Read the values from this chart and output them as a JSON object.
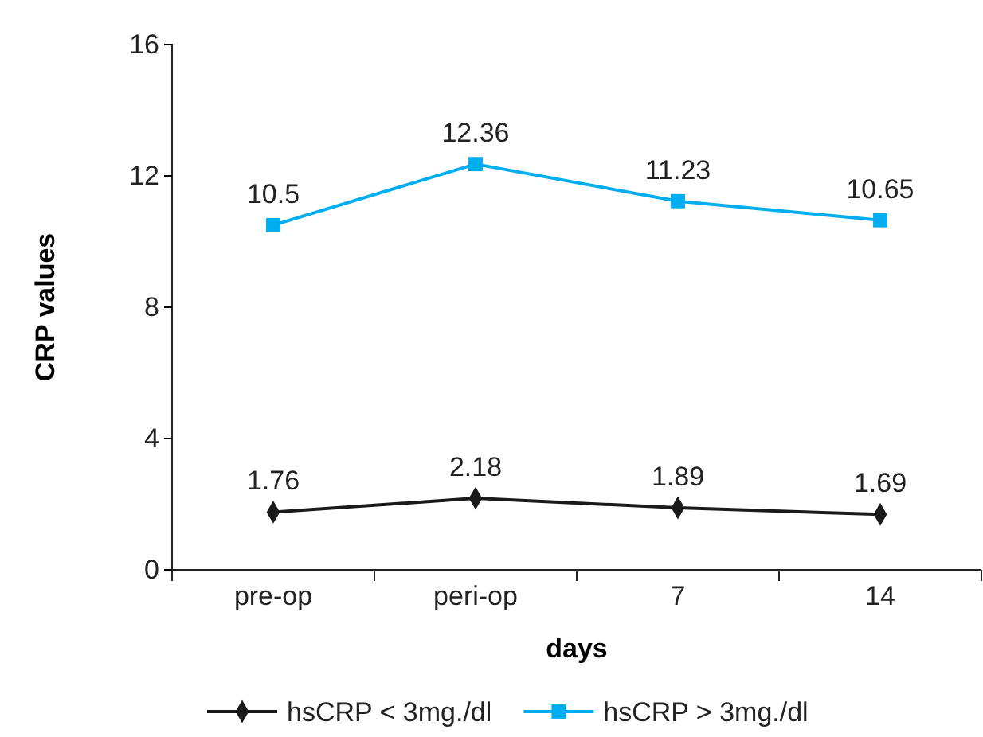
{
  "chart_data": {
    "type": "line",
    "xlabel": "days",
    "ylabel": "CRP values",
    "categories": [
      "pre-op",
      "peri-op",
      "7",
      "14"
    ],
    "series": [
      {
        "name": "hsCRP < 3mg./dl",
        "color": "#1a1a1a",
        "marker": "diamond",
        "values": [
          1.76,
          2.18,
          1.89,
          1.69
        ]
      },
      {
        "name": "hsCRP > 3mg./dl",
        "color": "#00aeef",
        "marker": "square",
        "values": [
          10.5,
          12.36,
          11.23,
          10.65
        ]
      }
    ],
    "ylim": [
      0,
      16
    ],
    "yticks": [
      0,
      4,
      8,
      12,
      16
    ],
    "data_labels": true,
    "grid": false,
    "legend": "bottom",
    "line_style": "solid"
  }
}
